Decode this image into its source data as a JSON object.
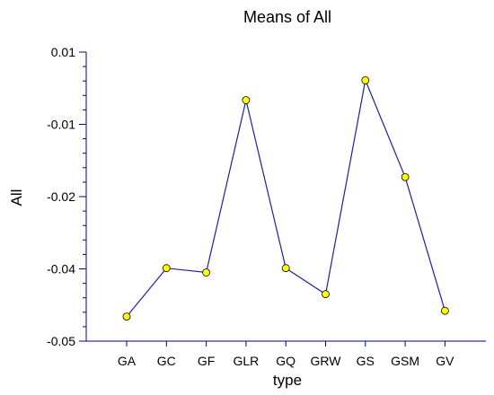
{
  "colors": {
    "axis": "#00008b",
    "line": "#1f1fa8",
    "marker_fill": "#ffff00",
    "marker_stroke": "#000000",
    "text": "#000000"
  },
  "chart_data": {
    "type": "line",
    "title": "Means of All",
    "xlabel": "type",
    "ylabel": "All",
    "categories": [
      "GA",
      "GC",
      "GF",
      "GLR",
      "GQ",
      "GRW",
      "GS",
      "GSM",
      "GV"
    ],
    "series": [
      {
        "values": [
          -0.0466,
          -0.0398,
          -0.0405,
          -0.0033,
          -0.0398,
          -0.0435,
          0.0022,
          -0.0173,
          -0.0458
        ]
      }
    ],
    "yticks": [
      {
        "value": 0.01,
        "label": "0.01"
      },
      {
        "value": -0.01,
        "label": "-0.01"
      },
      {
        "value": -0.02,
        "label": "-0.02"
      },
      {
        "value": -0.04,
        "label": "-0.04"
      },
      {
        "value": -0.05,
        "label": "-0.05"
      }
    ],
    "ylim": [
      -0.05,
      0.01
    ],
    "legend": "none",
    "grid": false,
    "marker": "circle"
  }
}
